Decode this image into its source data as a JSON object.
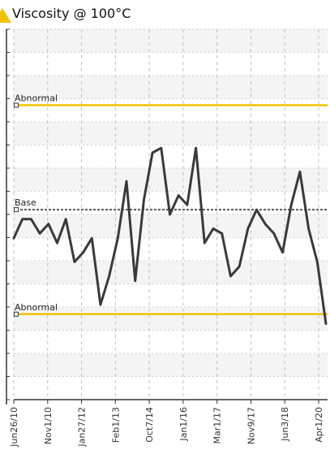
{
  "header": {
    "title": "Viscosity @ 100°C",
    "icon": "warning-icon"
  },
  "chart_data": {
    "type": "line",
    "title": "Viscosity @ 100°C",
    "xlabel": "",
    "ylabel": "",
    "grid": true,
    "x_tick_labels": [
      "Jun26/10",
      "Nov1/10",
      "Jan27/12",
      "Feb1/13",
      "Oct7/14",
      "Jan1/16",
      "Mar1/17",
      "Nov9/17",
      "Jun3/18",
      "Apr1/20"
    ],
    "reference_lines": [
      {
        "label": "Abnormal",
        "value": 16.2,
        "color": "#f2c200",
        "style": "solid"
      },
      {
        "label": "Base",
        "value": 14.0,
        "color": "#555555",
        "style": "dashed"
      },
      {
        "label": "Abnormal",
        "value": 11.8,
        "color": "#f2c200",
        "style": "solid"
      }
    ],
    "series": [
      {
        "color": "#3a3a3a",
        "values": [
          13.4,
          13.8,
          13.8,
          13.5,
          13.7,
          13.3,
          13.8,
          12.9,
          13.1,
          13.4,
          12.0,
          12.6,
          13.4,
          14.6,
          12.5,
          14.2,
          15.2,
          15.3,
          13.9,
          14.3,
          14.1,
          15.3,
          13.3,
          13.6,
          13.5,
          12.6,
          12.8,
          13.6,
          14.0,
          13.7,
          13.5,
          13.1,
          14.1,
          14.8,
          13.6,
          12.9,
          11.6
        ]
      }
    ]
  }
}
